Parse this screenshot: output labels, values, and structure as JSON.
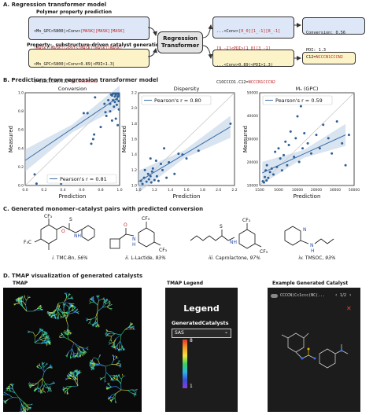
{
  "panelA": {
    "title": "A. Regression transformer model",
    "poly_title": "Polymer property prediction",
    "poly_line1_a": "<Mn_GPC>5800|<Conv>",
    "poly_line1_b": "[MASK][MASK][MASK]",
    "poly_line2_a": "[MASK][MASK]|<PDI>",
    "poly_line2_b": "[MASK][MASK][MASK]",
    "poly_line3": "O=C1OCCCO1.C12...",
    "gen_title": "Property-, substructure-driven catalyst generation",
    "gen_line1": "<Mn_GPC>5800|<Conv>0.89|<PDI>1.3|",
    "gen_line2_a": "O=C1OCCCO1.C12=",
    "gen_line2_b": "NCCCN1CCCN2",
    "model_label_1": "Regression",
    "model_label_2": "Transformer",
    "out1_line1_a": "...<Conv>",
    "out1_line1_b": "[0_0][1_-1][8_-1]",
    "out1_line2_a": "[9_-2]",
    "out1_line2_b": "<PDI>[1_0][3_-1]",
    "out1_line3": "O=C1OCCCO1.C12...",
    "res1": "Conversion: 0.56",
    "res2": "PDI: 1.3",
    "out2_line1": "...<Conv>0.89|<PDI>1.3|",
    "out2_line2_a": "C1OCCCO1.C12=",
    "out2_line2_b": "NCCCN1CCCN2",
    "res3_a": "C12=",
    "res3_b": "NCCCN1CCCN2"
  },
  "panelB": {
    "title": "B. Predictions from regression transformer model",
    "xlabel": "Prediction",
    "ylabel": "Measured"
  },
  "chart_data": [
    {
      "type": "scatter",
      "title": "Conversion",
      "xlabel": "Prediction",
      "ylabel": "Measured",
      "xlim": [
        0.0,
        1.0
      ],
      "ylim": [
        0.0,
        1.0
      ],
      "xticks": [
        "0.0",
        "0.2",
        "0.4",
        "0.6",
        "0.8",
        "1.0"
      ],
      "yticks": [
        "0.0",
        "0.2",
        "0.4",
        "0.6",
        "0.8",
        "1.0"
      ],
      "legend": "Pearson's r = 0.81",
      "legend_position": "bottom-right",
      "fit": [
        [
          0.0,
          0.27
        ],
        [
          1.0,
          0.96
        ]
      ],
      "points": [
        [
          0.1,
          0.12
        ],
        [
          0.12,
          0.02
        ],
        [
          0.25,
          0.1
        ],
        [
          0.28,
          0.04
        ],
        [
          0.38,
          0.02
        ],
        [
          0.62,
          0.78
        ],
        [
          0.66,
          0.78
        ],
        [
          0.7,
          0.45
        ],
        [
          0.72,
          0.5
        ],
        [
          0.73,
          0.55
        ],
        [
          0.74,
          0.95
        ],
        [
          0.8,
          0.63
        ],
        [
          0.84,
          0.88
        ],
        [
          0.85,
          0.79
        ],
        [
          0.86,
          0.75
        ],
        [
          0.88,
          0.92
        ],
        [
          0.9,
          0.88
        ],
        [
          0.9,
          0.8
        ],
        [
          0.91,
          0.98
        ],
        [
          0.92,
          0.97
        ],
        [
          0.93,
          1.0
        ],
        [
          0.93,
          0.92
        ],
        [
          0.94,
          0.85
        ],
        [
          0.94,
          1.0
        ],
        [
          0.95,
          0.96
        ],
        [
          0.95,
          0.9
        ],
        [
          0.96,
          1.0
        ],
        [
          0.96,
          0.98
        ],
        [
          0.96,
          0.72
        ],
        [
          0.97,
          0.93
        ],
        [
          0.97,
          1.0
        ],
        [
          0.97,
          0.87
        ],
        [
          0.98,
          0.96
        ],
        [
          0.98,
          1.0
        ],
        [
          0.98,
          0.65
        ],
        [
          0.99,
          0.99
        ],
        [
          0.99,
          0.91
        ],
        [
          0.99,
          1.0
        ],
        [
          1.0,
          0.97
        ],
        [
          1.0,
          0.82
        ],
        [
          0.92,
          0.7
        ]
      ]
    },
    {
      "type": "scatter",
      "title": "Dispersity",
      "xlabel": "Prediction",
      "ylabel": "Measured",
      "xlim": [
        1.0,
        2.2
      ],
      "ylim": [
        1.0,
        2.2
      ],
      "xticks": [
        "1.0",
        "1.2",
        "1.4",
        "1.6",
        "1.8",
        "2.0",
        "2.2"
      ],
      "yticks": [
        "1.0",
        "1.2",
        "1.4",
        "1.6",
        "1.8",
        "2.0",
        "2.2"
      ],
      "legend": "Pearson's r = 0.80",
      "legend_position": "top-left",
      "fit": [
        [
          1.0,
          1.05
        ],
        [
          2.15,
          1.76
        ]
      ],
      "points": [
        [
          1.03,
          1.06
        ],
        [
          1.05,
          1.02
        ],
        [
          1.07,
          1.1
        ],
        [
          1.08,
          1.2
        ],
        [
          1.1,
          1.05
        ],
        [
          1.12,
          1.15
        ],
        [
          1.13,
          1.08
        ],
        [
          1.15,
          1.12
        ],
        [
          1.16,
          1.04
        ],
        [
          1.17,
          1.18
        ],
        [
          1.2,
          1.07
        ],
        [
          1.22,
          1.32
        ],
        [
          1.23,
          1.12
        ],
        [
          1.25,
          1.06
        ],
        [
          1.28,
          1.28
        ],
        [
          1.3,
          1.2
        ],
        [
          1.32,
          1.48
        ],
        [
          1.35,
          1.1
        ],
        [
          1.38,
          1.3
        ],
        [
          1.45,
          1.15
        ],
        [
          1.5,
          1.41
        ],
        [
          1.55,
          1.4
        ],
        [
          1.6,
          1.35
        ],
        [
          1.75,
          1.45
        ],
        [
          1.15,
          1.35
        ],
        [
          1.18,
          1.22
        ],
        [
          2.15,
          1.8
        ]
      ]
    },
    {
      "type": "scatter",
      "title": "Mₙ (GPC)",
      "xlabel": "Prediction",
      "ylabel": "Measured",
      "xlim": [
        0,
        55000
      ],
      "ylim": [
        0,
        55000
      ],
      "xticks": [
        "1500",
        "5000",
        "10000",
        "20000",
        "30000",
        "50000"
      ],
      "yticks": [
        "10000",
        "20000",
        "30000",
        "40000",
        "50000"
      ],
      "legend": "Pearson's r = 0.59",
      "legend_position": "top-left",
      "fit": [
        [
          1500,
          7500
        ],
        [
          50000,
          30000
        ]
      ],
      "points": [
        [
          1800,
          2500
        ],
        [
          2500,
          1800
        ],
        [
          3000,
          5000
        ],
        [
          3500,
          9000
        ],
        [
          4000,
          3000
        ],
        [
          4200,
          12000
        ],
        [
          5000,
          4500
        ],
        [
          6000,
          8000
        ],
        [
          7000,
          10000
        ],
        [
          8000,
          6500
        ],
        [
          9000,
          20000
        ],
        [
          10000,
          11000
        ],
        [
          11000,
          22000
        ],
        [
          12000,
          16000
        ],
        [
          13000,
          9000
        ],
        [
          14000,
          18000
        ],
        [
          15000,
          26000
        ],
        [
          16000,
          12000
        ],
        [
          17000,
          24000
        ],
        [
          18000,
          32000
        ],
        [
          20000,
          17000
        ],
        [
          21000,
          28000
        ],
        [
          22000,
          41000
        ],
        [
          23000,
          14000
        ],
        [
          25000,
          22000
        ],
        [
          26000,
          31000
        ],
        [
          28000,
          25000
        ],
        [
          30000,
          19000
        ],
        [
          33000,
          30000
        ],
        [
          35000,
          22000
        ],
        [
          37000,
          36000
        ],
        [
          40000,
          28000
        ],
        [
          42000,
          19000
        ],
        [
          45000,
          38000
        ],
        [
          48000,
          25000
        ],
        [
          50000,
          12000
        ],
        [
          52000,
          30000
        ],
        [
          24000,
          47000
        ]
      ]
    }
  ],
  "panelC": {
    "title": "C. Generated monomer–catalyst pairs with predicted conversion",
    "cap1_a": "i.",
    "cap1_b": " TMC-Bn, ",
    "cap1_c": "56%",
    "cap2_a": "ii.",
    "cap2_b": " L-Lactide, ",
    "cap2_c": "93%",
    "cap3_a": "iii.",
    "cap3_b": " Caprolactone, ",
    "cap3_c": "97%",
    "cap4_a": "iv.",
    "cap4_b": " TMSOC, ",
    "cap4_c": "93%",
    "atoms": {
      "cf3": "CF₃",
      "f3c": "F₃C",
      "o": "O",
      "s": "S",
      "n": "N",
      "h": "H",
      "nh": "NH"
    }
  },
  "panelD": {
    "title": "D. TMAP visualization of generated catalysts",
    "tmap_label": "TMAP",
    "legend_label": "TMAP Legend",
    "legend_title": "Legend",
    "legend_sub": "GeneratedCatalysts",
    "select_value": "SAS",
    "scale_max": "8",
    "scale_min": "1",
    "example_label": "Example Generated Catalyst",
    "smiles": "CCCCN(Cc1ccc(NC(...",
    "pager": "1/2",
    "colors": {
      "tmap_bg": "#0a0a0a",
      "legend_bg": "#222",
      "accent": "#e04b3a"
    }
  }
}
